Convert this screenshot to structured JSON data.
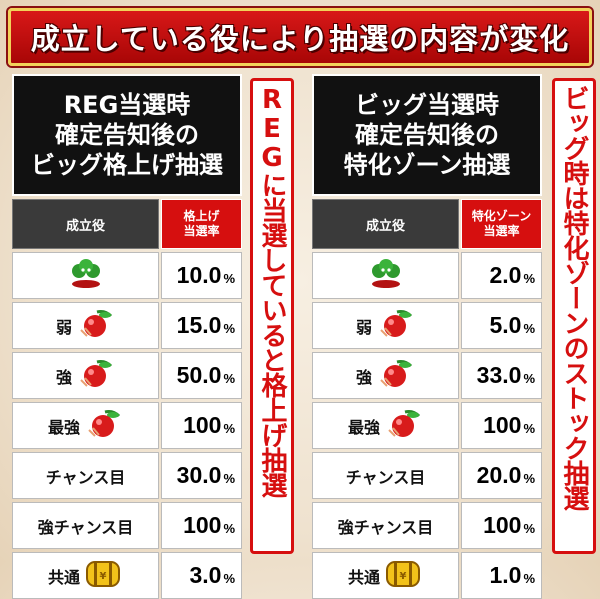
{
  "header": {
    "title": "成立している役により抽選の内容が変化"
  },
  "panels": [
    {
      "title_lines": [
        "REG当選時",
        "確定告知後の",
        "ビッグ格上げ抽選"
      ],
      "col1": "成立役",
      "col2_lines": [
        "格上げ",
        "当選率"
      ],
      "rows": [
        {
          "label": "",
          "icon": "clover-icon",
          "value": "10.0"
        },
        {
          "label": "弱",
          "icon": "cherry-icon",
          "value": "15.0"
        },
        {
          "label": "強",
          "icon": "cherry-icon",
          "value": "50.0"
        },
        {
          "label": "最強",
          "icon": "cherry-icon",
          "value": "100"
        },
        {
          "label": "チャンス目",
          "icon": "",
          "value": "30.0"
        },
        {
          "label": "強チャンス目",
          "icon": "",
          "value": "100"
        },
        {
          "label": "共通",
          "icon": "barrel-icon",
          "value": "3.0"
        }
      ],
      "banner": "REGに当選していると格上げ抽選"
    },
    {
      "title_lines": [
        "ビッグ当選時",
        "確定告知後の",
        "特化ゾーン抽選"
      ],
      "col1": "成立役",
      "col2_lines": [
        "特化ゾーン",
        "当選率"
      ],
      "rows": [
        {
          "label": "",
          "icon": "clover-icon",
          "value": "2.0"
        },
        {
          "label": "弱",
          "icon": "cherry-icon",
          "value": "5.0"
        },
        {
          "label": "強",
          "icon": "cherry-icon",
          "value": "33.0"
        },
        {
          "label": "最強",
          "icon": "cherry-icon",
          "value": "100"
        },
        {
          "label": "チャンス目",
          "icon": "",
          "value": "20.0"
        },
        {
          "label": "強チャンス目",
          "icon": "",
          "value": "100"
        },
        {
          "label": "共通",
          "icon": "barrel-icon",
          "value": "1.0"
        }
      ],
      "banner": "ビッグ時は特化ゾーンのストック抽選"
    }
  ],
  "percent_sign": "%",
  "colors": {
    "accent_red": "#d60f0f",
    "header_border": "#f2d25a",
    "title_bg": "#111111"
  }
}
